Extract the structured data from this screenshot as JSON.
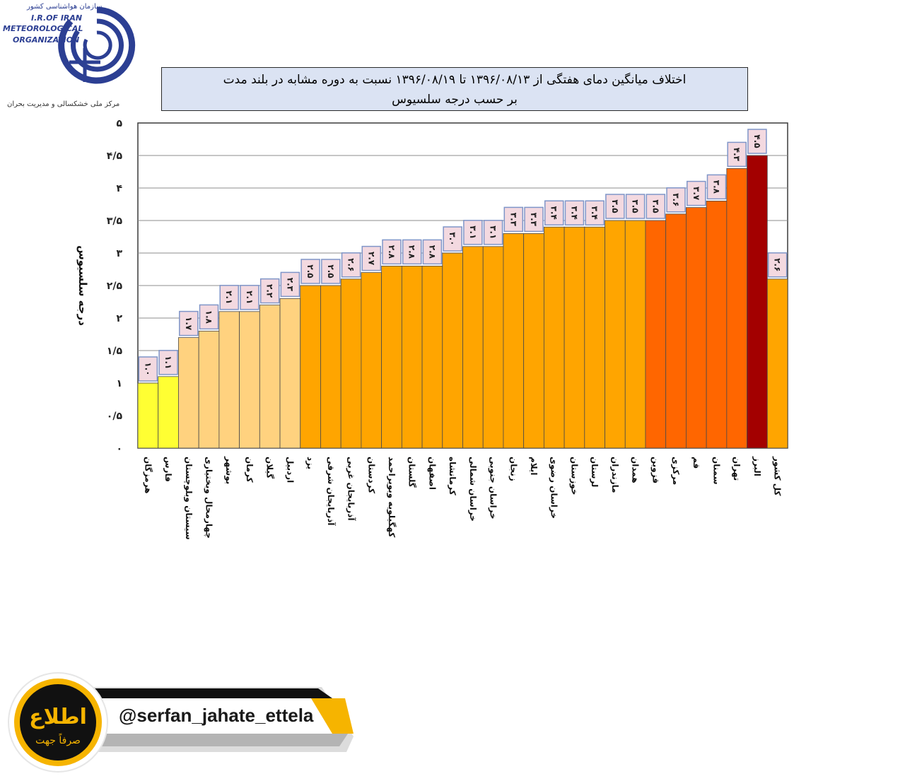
{
  "logo": {
    "org_fa": "سازمان هواشناسی کشور",
    "line1": "I.R.OF IRAN",
    "line2": "METEOROLOGICAL",
    "line3": "ORGANIZATION",
    "center_fa": "مرکز ملی خشکسالی و مدیریت بحران"
  },
  "title": {
    "line1": "اختلاف میانگین دمای هفتگی از ۱۳۹۶/۰۸/۱۳ تا ۱۳۹۶/۰۸/۱۹ نسبت به دوره مشابه در بلند مدت",
    "line2": "بر حسب درجه سلسیوس"
  },
  "chart_data": {
    "type": "bar",
    "title": "اختلاف میانگین دمای هفتگی از ۱۳۹۶/۰۸/۱۳ تا ۱۳۹۶/۰۸/۱۹ نسبت به دوره مشابه در بلند مدت بر حسب درجه سلسیوس",
    "ylabel": "درجه سلسیوس",
    "xlabel": "",
    "ylim": [
      0,
      5
    ],
    "yticks": [
      0,
      0.5,
      1,
      1.5,
      2,
      2.5,
      3,
      3.5,
      4,
      4.5,
      5
    ],
    "ytick_labels": [
      "۰",
      "۰/۵",
      "۱",
      "۱/۵",
      "۲",
      "۲/۵",
      "۳",
      "۳/۵",
      "۴",
      "۴/۵",
      "۵"
    ],
    "grid": true,
    "categories": [
      "هرمزگان",
      "فارس",
      "سیستان وبلوچستان",
      "چهارمحال وبختیاری",
      "بوشهر",
      "کرمان",
      "گیلان",
      "اردبیل",
      "یزد",
      "آذربایجان شرقی",
      "آذربایجان غربی",
      "کردستان",
      "کهگیلویه وبویراحمد",
      "گلستان",
      "اصفهان",
      "کرمانشاه",
      "خراسان شمالی",
      "خراسان جنوبی",
      "زنجان",
      "ایلام",
      "خراسان رضوی",
      "خوزستان",
      "لرستان",
      "مازندران",
      "همدان",
      "قزوین",
      "مرکزی",
      "قم",
      "سمنان",
      "تهران",
      "البرز",
      "کل کشور"
    ],
    "values": [
      1.0,
      1.1,
      1.7,
      1.8,
      2.1,
      2.1,
      2.2,
      2.3,
      2.5,
      2.5,
      2.6,
      2.7,
      2.8,
      2.8,
      2.8,
      3.0,
      3.1,
      3.1,
      3.3,
      3.3,
      3.4,
      3.4,
      3.4,
      3.5,
      3.5,
      3.5,
      3.6,
      3.7,
      3.8,
      4.3,
      4.5,
      2.6
    ],
    "value_labels": [
      "۱.۰",
      "۱.۱",
      "۱.۷",
      "۱.۸",
      "۲.۱",
      "۲.۱",
      "۲.۲",
      "۲.۳",
      "۲.۵",
      "۲.۵",
      "۲.۶",
      "۲.۷",
      "۲.۸",
      "۲.۸",
      "۲.۸",
      "۳.۰",
      "۳.۱",
      "۳.۱",
      "۳.۳",
      "۳.۳",
      "۳.۴",
      "۳.۴",
      "۳.۴",
      "۳.۵",
      "۳.۵",
      "۳.۵",
      "۳.۶",
      "۳.۷",
      "۳.۸",
      "۴.۳",
      "۴.۵",
      "۲.۶"
    ],
    "bar_colors": [
      "#ffff33",
      "#ffff33",
      "#ffd27f",
      "#ffd27f",
      "#ffd27f",
      "#ffd27f",
      "#ffd27f",
      "#ffd27f",
      "#ffa500",
      "#ffa500",
      "#ffa500",
      "#ffa500",
      "#ffa500",
      "#ffa500",
      "#ffa500",
      "#ffa500",
      "#ffa500",
      "#ffa500",
      "#ffa500",
      "#ffa500",
      "#ffa500",
      "#ffa500",
      "#ffa500",
      "#ffa500",
      "#ffa500",
      "#ff6600",
      "#ff6600",
      "#ff6600",
      "#ff6600",
      "#ff6600",
      "#a30000",
      "#ffa500"
    ]
  },
  "footer": {
    "handle": "@serfan_jahate_ettela",
    "badge_text": "اطلاع",
    "badge_sub": "صرفاً جهت"
  }
}
